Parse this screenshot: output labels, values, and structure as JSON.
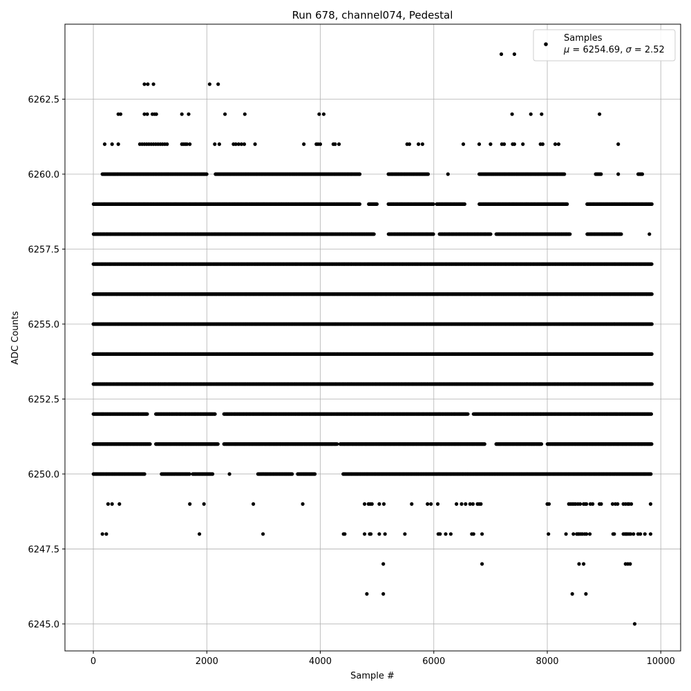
{
  "chart_data": {
    "type": "scatter",
    "title": "Run 678, channel074, Pedestal",
    "xlabel": "Sample #",
    "ylabel": "ADC Counts",
    "xlim": [
      -500,
      10350
    ],
    "ylim": [
      6244.1,
      6265.0
    ],
    "xticks": [
      0,
      2000,
      4000,
      6000,
      8000,
      10000
    ],
    "xtick_labels": [
      "0",
      "2000",
      "4000",
      "6000",
      "8000",
      "10000"
    ],
    "yticks": [
      6245.0,
      6247.5,
      6250.0,
      6252.5,
      6255.0,
      6257.5,
      6260.0,
      6262.5
    ],
    "ytick_labels": [
      "6245.0",
      "6247.5",
      "6250.0",
      "6252.5",
      "6255.0",
      "6257.5",
      "6260.0",
      "6262.5"
    ],
    "grid": true,
    "legend_position": "top-right",
    "legend": {
      "marker_color": "#000000",
      "line1": "Samples",
      "line2_prefix": "μ = 6254.69, ",
      "line2_sigma": "σ",
      "line2_suffix": " = 2.52"
    },
    "marker_color": "#000000",
    "series": [
      {
        "name": "Samples",
        "x_range": [
          0,
          9840
        ],
        "levels": [
          {
            "y": 6245,
            "x": [
              9540
            ]
          },
          {
            "y": 6246,
            "x": [
              4820,
              5110,
              8440,
              8680
            ]
          },
          {
            "y": 6247,
            "x": [
              5110,
              6850,
              8560,
              8640,
              9380,
              9420,
              9460
            ]
          },
          {
            "y": 6248,
            "x": [
              160,
              230,
              4410,
              4430,
              4780,
              4870,
              4890,
              5040,
              5140,
              5490,
              6080,
              6110,
              6210,
              6300,
              6670,
              6700,
              6850,
              8020,
              8330,
              8460,
              8520,
              8540,
              8560,
              8590,
              8620,
              8660,
              8690,
              8750,
              9160,
              9180,
              9340,
              9370,
              9390,
              9410,
              9440,
              9470,
              9520,
              9600,
              9640,
              9720,
              9820,
              1870,
              2990
            ]
          },
          {
            "y": 6249,
            "x": [
              260,
              330,
              460,
              1700,
              1950,
              2820,
              3690,
              4780,
              4850,
              4880,
              4910,
              5040,
              5120,
              5610,
              5890,
              5950,
              6070,
              6400,
              6490,
              6560,
              6640,
              6690,
              6770,
              6800,
              6830,
              8000,
              8030,
              8380,
              8410,
              8440,
              8470,
              8500,
              8540,
              8580,
              8640,
              8670,
              8690,
              8760,
              8800,
              8920,
              8950,
              9150,
              9200,
              9240,
              9340,
              9380,
              9420,
              9440,
              9480,
              9820
            ]
          },
          {
            "y": 6250,
            "x": "dense:0-900,1200-1700,1750-2100,2400,2900-3500,3600-3900,4400-9830"
          },
          {
            "y": 6251,
            "x": "dense:0-1000,1100-2200,2300-4300,4350-6900,7100-7900,8000-9840"
          },
          {
            "y": 6252,
            "x": "dense:0-950,1100-2150,2300-6600,6700-9840"
          },
          {
            "y": 6253,
            "x": "dense:0-9840"
          },
          {
            "y": 6254,
            "x": "dense:0-9840"
          },
          {
            "y": 6255,
            "x": "dense:0-9840"
          },
          {
            "y": 6256,
            "x": "dense:0-9840"
          },
          {
            "y": 6257,
            "x": "dense:0-9840"
          },
          {
            "y": 6258,
            "x": "dense:0-4950,5200-6000,6100-7000,7100-8400,8700-9300,9800"
          },
          {
            "y": 6259,
            "x": "dense:0-4700,4850-5000,5200-6000,6050-6550,6800-8350,8700-9840"
          },
          {
            "y": 6260,
            "x": "dense:160-2000,2150-4700,5200-5900,6250,6800-8300,8850-8950,9250,9600-9680"
          },
          {
            "y": 6261,
            "x": [
              200,
              330,
              440,
              820,
              860,
              900,
              940,
              980,
              1020,
              1060,
              1100,
              1140,
              1180,
              1220,
              1260,
              1300,
              1560,
              1590,
              1620,
              1650,
              1700,
              2140,
              2220,
              2470,
              2510,
              2560,
              2610,
              2660,
              2850,
              3710,
              3930,
              3960,
              4000,
              4230,
              4260,
              4330,
              5530,
              5570,
              5730,
              5800,
              6520,
              6800,
              7000,
              7200,
              7240,
              7390,
              7420,
              7570,
              7880,
              7920,
              8140,
              8200,
              9250
            ]
          },
          {
            "y": 6262,
            "x": [
              440,
              480,
              900,
              950,
              1040,
              1080,
              1110,
              1560,
              1680,
              2320,
              2670,
              3980,
              4060,
              7380,
              7710,
              7900,
              8920
            ]
          },
          {
            "y": 6263,
            "x": [
              900,
              960,
              1060,
              2050,
              2200
            ]
          },
          {
            "y": 6264,
            "x": [
              7190,
              7420
            ]
          }
        ]
      }
    ]
  }
}
